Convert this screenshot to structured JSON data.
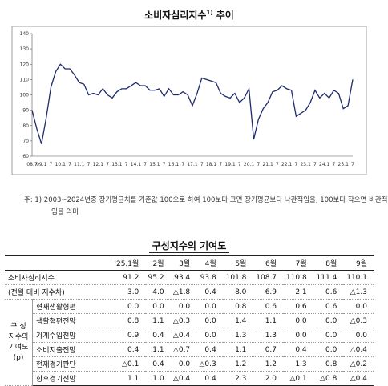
{
  "chart_data": {
    "type": "line",
    "title": "소비자심리지수",
    "title_footnote_mark": "1)",
    "title_tail": "추이",
    "categories": [
      "08.7",
      null,
      "09.1",
      null,
      "7",
      null,
      "10.1",
      null,
      "7",
      null,
      "11.1",
      null,
      "7",
      null,
      "12.1",
      null,
      "7",
      null,
      "13.1",
      null,
      "7",
      null,
      "14.1",
      null,
      "7",
      null,
      "15.1",
      null,
      "7",
      null,
      "16.1",
      null,
      "7",
      null,
      "17.1",
      null,
      "7",
      null,
      "18.1",
      null,
      "7",
      null,
      "19.1",
      null,
      "7",
      null,
      "20.1",
      null,
      "7",
      null,
      "21.1",
      null,
      "7",
      null,
      "22.1",
      null,
      "7",
      null,
      "23.1",
      null,
      "7",
      null,
      "24.1",
      null,
      "7",
      null,
      "25.1",
      null,
      "7"
    ],
    "series": [
      {
        "name": "소비자심리지수",
        "color": "#1f2a6b",
        "values": [
          90,
          78,
          68,
          85,
          105,
          115,
          120,
          117,
          117,
          113,
          108,
          107,
          100,
          101,
          100,
          104,
          100,
          98,
          102,
          104,
          104,
          106,
          108,
          106,
          106,
          103,
          103,
          104,
          99,
          104,
          100,
          100,
          102,
          100,
          93,
          101,
          111,
          110,
          109,
          108,
          101,
          99,
          98,
          101,
          95,
          98,
          104,
          71,
          84,
          91,
          95,
          102,
          103,
          106,
          104,
          103,
          86,
          88,
          90,
          95,
          103,
          98,
          101,
          98,
          103,
          101,
          91,
          93,
          110
        ]
      }
    ],
    "ylim": [
      60,
      140
    ],
    "yticks": [
      60,
      70,
      80,
      90,
      100,
      110,
      120,
      130,
      140
    ],
    "grid": false,
    "note": "주: 1) 2003~2024년중 장기평균치를 기준값 100으로 하여 100보다 크면 장기평균보다 낙관적임을, 100보다 작으면 비관적임을 의미"
  },
  "table": {
    "title": "구성지수의 기여도",
    "header": [
      "'25.1월",
      "2월",
      "3월",
      "4월",
      "5월",
      "6월",
      "7월",
      "8월",
      "9월"
    ],
    "top_rows": [
      {
        "label": "소비자심리지수",
        "cells": [
          "91.2",
          "95.2",
          "93.4",
          "93.8",
          "101.8",
          "108.7",
          "110.8",
          "111.4",
          "110.1"
        ]
      },
      {
        "label": "(전월 대비 지수차)",
        "cells": [
          "3.0",
          "4.0",
          "△1.8",
          "0.4",
          "8.0",
          "6.9",
          "2.1",
          "0.6",
          "△1.3"
        ]
      }
    ],
    "group_label": [
      "구 성",
      "지수의",
      "기여도",
      "(p)"
    ],
    "group_rows": [
      {
        "label": "현재생활형편",
        "cells": [
          "0.0",
          "0.0",
          "0.0",
          "0.0",
          "0.8",
          "0.6",
          "0.6",
          "0.6",
          "0.0"
        ]
      },
      {
        "label": "생활형편전망",
        "cells": [
          "0.8",
          "1.1",
          "△0.3",
          "0.0",
          "1.4",
          "1.1",
          "0.0",
          "0.0",
          "△0.3"
        ]
      },
      {
        "label": "가계수입전망",
        "cells": [
          "0.9",
          "0.4",
          "△0.4",
          "0.0",
          "1.3",
          "1.3",
          "0.0",
          "0.0",
          "0.0"
        ]
      },
      {
        "label": "소비지출전망",
        "cells": [
          "0.4",
          "1.1",
          "△0.7",
          "0.4",
          "1.1",
          "0.7",
          "0.4",
          "0.0",
          "△0.4"
        ]
      },
      {
        "label": "현재경기판단",
        "cells": [
          "△0.1",
          "0.4",
          "0.0",
          "△0.3",
          "1.2",
          "1.2",
          "1.3",
          "0.8",
          "△0.2"
        ]
      },
      {
        "label": "향후경기전망",
        "cells": [
          "1.1",
          "1.0",
          "△0.4",
          "0.4",
          "2.3",
          "2.0",
          "△0.1",
          "△0.8",
          "△0.4"
        ]
      }
    ]
  }
}
